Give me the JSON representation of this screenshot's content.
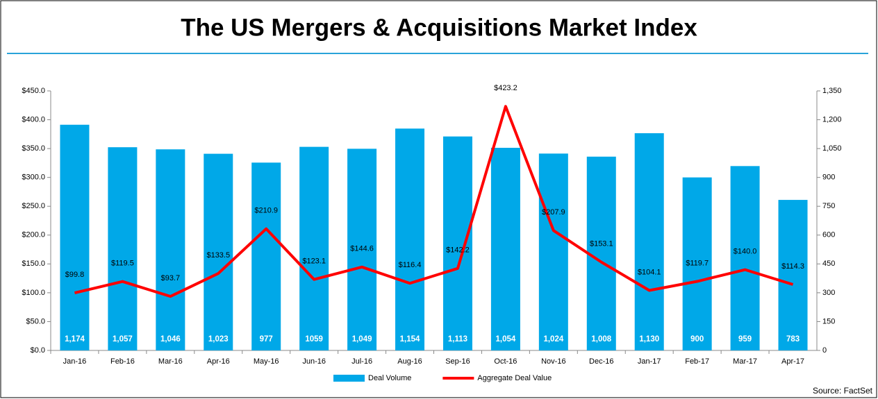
{
  "chart_data": {
    "type": "bar",
    "title": "The US Mergers & Acquisitions Market Index",
    "source": "Source: FactSet",
    "categories": [
      "Jan-16",
      "Feb-16",
      "Mar-16",
      "Apr-16",
      "May-16",
      "Jun-16",
      "Jul-16",
      "Aug-16",
      "Sep-16",
      "Oct-16",
      "Nov-16",
      "Dec-16",
      "Jan-17",
      "Feb-17",
      "Mar-17",
      "Apr-17"
    ],
    "series": [
      {
        "name": "Deal Volume",
        "type": "bar",
        "axis": "y2",
        "color": "#00a8e8",
        "values": [
          1174,
          1057,
          1046,
          1023,
          977,
          1059,
          1049,
          1154,
          1113,
          1054,
          1024,
          1008,
          1130,
          900,
          959,
          783
        ],
        "value_labels": [
          "1,174",
          "1,057",
          "1,046",
          "1,023",
          "977",
          "1059",
          "1,049",
          "1,154",
          "1,113",
          "1,054",
          "1,024",
          "1,008",
          "1,130",
          "900",
          "959",
          "783"
        ]
      },
      {
        "name": "Aggregate Deal Value",
        "type": "line",
        "color": "#ff0000",
        "values": [
          99.8,
          119.5,
          93.7,
          133.5,
          210.9,
          123.1,
          144.6,
          116.4,
          142.2,
          423.2,
          207.9,
          153.1,
          104.1,
          119.7,
          140.0,
          114.3
        ],
        "value_labels": [
          "$99.8",
          "$119.5",
          "$93.7",
          "$133.5",
          "$210.9",
          "$123.1",
          "$144.6",
          "$116.4",
          "$142.2",
          "$423.2",
          "$207.9",
          "$153.1",
          "$104.1",
          "$119.7",
          "$140.0",
          "$114.3"
        ]
      }
    ],
    "ylim": [
      0,
      450
    ],
    "yticks": [
      {
        "value": 0,
        "label": "$0.0"
      },
      {
        "value": 50,
        "label": "$50.0"
      },
      {
        "value": 100,
        "label": "$100.0"
      },
      {
        "value": 150,
        "label": "$150.0"
      },
      {
        "value": 200,
        "label": "$200.0"
      },
      {
        "value": 250,
        "label": "$250.0"
      },
      {
        "value": 300,
        "label": "$300.0"
      },
      {
        "value": 350,
        "label": "$350.0"
      },
      {
        "value": 400,
        "label": "$400.0"
      },
      {
        "value": 450,
        "label": "$450.0"
      }
    ],
    "y2lim": [
      0,
      1350
    ],
    "y2ticks": [
      0,
      150,
      300,
      450,
      600,
      750,
      900,
      {
        "value": 1050,
        "label": "1,050"
      },
      {
        "value": 1200,
        "label": "1,200"
      },
      {
        "value": 1350,
        "label": "1,350"
      }
    ],
    "grid": false,
    "legend": "bottom"
  }
}
